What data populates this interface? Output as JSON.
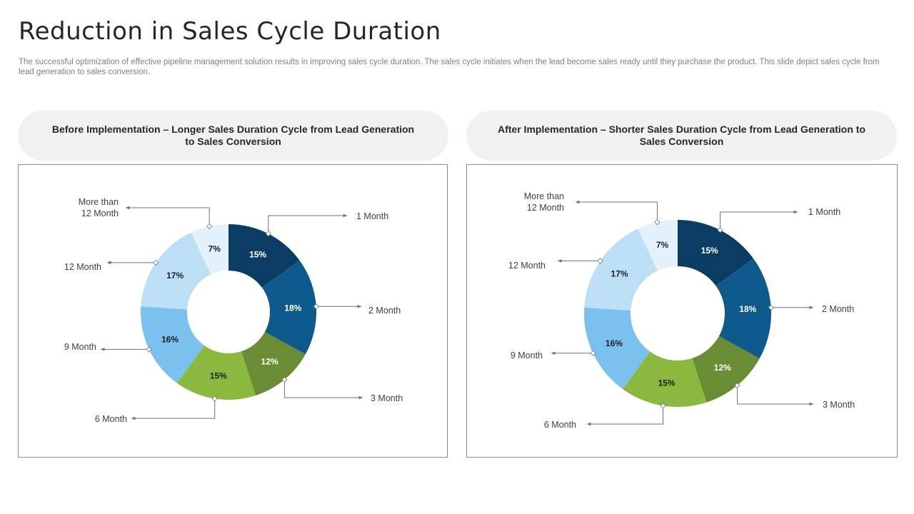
{
  "header": {
    "title": "Reduction in Sales Cycle Duration",
    "subtitle": "The successful optimization of effective pipeline management solution results in improving sales cycle duration. The sales cycle initiates when the lead become sales ready until they purchase the product. This slide depict sales cycle from lead generation to sales conversion."
  },
  "panels": {
    "before": {
      "heading": "Before Implementation – Longer Sales Duration Cycle from Lead Generation to Sales Conversion"
    },
    "after": {
      "heading": "After Implementation – Shorter Sales Duration Cycle from Lead Generation to Sales Conversion"
    }
  },
  "colors": {
    "1 Month": "#0b3d63",
    "2 Month": "#0f5a8c",
    "3 Month": "#6a8c34",
    "6 Month": "#8bb83f",
    "9 Month": "#7ac1ef",
    "12 Month": "#bcdff6",
    "More than 12 Month": "#e3f1fb"
  },
  "chart_data": [
    {
      "type": "pie",
      "variant": "donut",
      "title": "Before Implementation – Longer Sales Duration Cycle from Lead Generation to Sales Conversion",
      "categories": [
        "1 Month",
        "2 Month",
        "3 Month",
        "6 Month",
        "9 Month",
        "12 Month",
        "More than 12 Month"
      ],
      "values": [
        15,
        18,
        12,
        15,
        16,
        17,
        7
      ],
      "labels": [
        "15%",
        "18%",
        "12%",
        "15%",
        "16%",
        "17%",
        "7%"
      ]
    },
    {
      "type": "pie",
      "variant": "donut",
      "title": "After Implementation – Shorter Sales Duration Cycle from Lead Generation to Sales Conversion",
      "categories": [
        "1 Month",
        "2 Month",
        "3 Month",
        "6 Month",
        "9 Month",
        "12 Month",
        "More than 12 Month"
      ],
      "values": [
        15,
        18,
        12,
        15,
        16,
        17,
        7
      ],
      "labels": [
        "15%",
        "18%",
        "12%",
        "15%",
        "16%",
        "17%",
        "7%"
      ]
    }
  ]
}
